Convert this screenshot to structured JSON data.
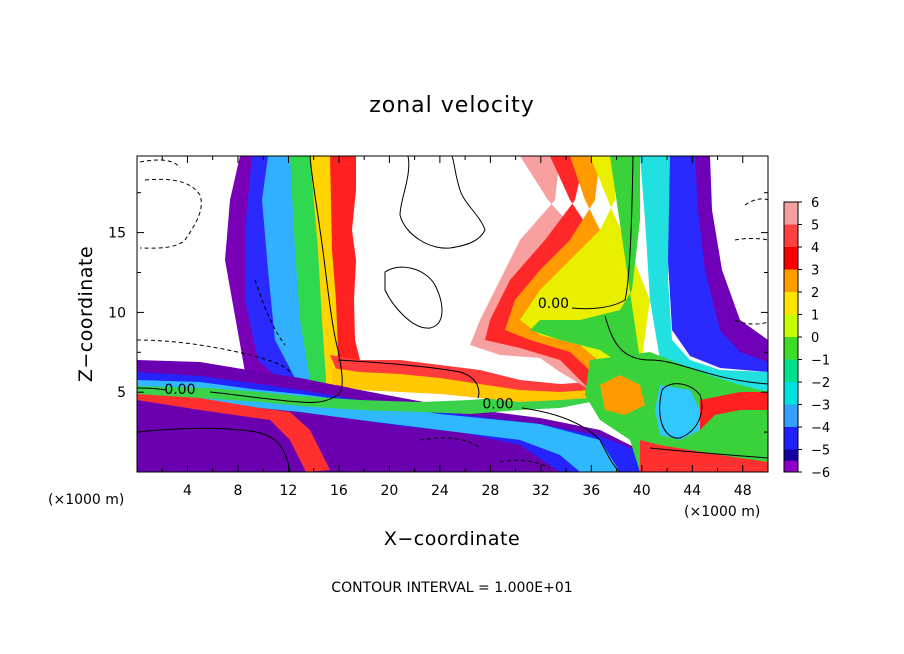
{
  "chart_data": {
    "type": "heatmap",
    "title": "zonal velocity",
    "xlabel": "X−coordinate",
    "ylabel": "Z−coordinate",
    "x_unit": "(×1000 m)",
    "y_unit": "(×1000 m)",
    "xlim": [
      0,
      50
    ],
    "ylim": [
      0,
      19.8
    ],
    "x_ticks": [
      4,
      8,
      12,
      16,
      20,
      24,
      28,
      32,
      36,
      40,
      44,
      48
    ],
    "y_ticks": [
      5,
      10,
      15
    ],
    "colorbar": {
      "ticks": [
        6,
        5,
        4,
        3,
        2,
        1,
        0,
        -1,
        -2,
        -3,
        -4,
        -5,
        -6
      ],
      "tick_labels": [
        "6",
        "5",
        "4",
        "3",
        "2",
        "1",
        "0",
        "−1",
        "−2",
        "−3",
        "−4",
        "−5",
        "−6"
      ],
      "colors": [
        "#f4a0a0",
        "#ff4040",
        "#f80000",
        "#ff9c00",
        "#ffe400",
        "#c8ff00",
        "#3cdc28",
        "#00e08c",
        "#00e0e0",
        "#34a0ff",
        "#2020ff",
        "#1800a0",
        "#8c00c8"
      ]
    },
    "contour_labels": [
      {
        "text": "0.00",
        "x": 3.4,
        "z": 5.2
      },
      {
        "text": "0.00",
        "x": 33.0,
        "z": 10.6
      },
      {
        "text": "0.00",
        "x": 28.6,
        "z": 4.3
      }
    ],
    "note": "CONTOUR INTERVAL = 1.000E+01"
  }
}
